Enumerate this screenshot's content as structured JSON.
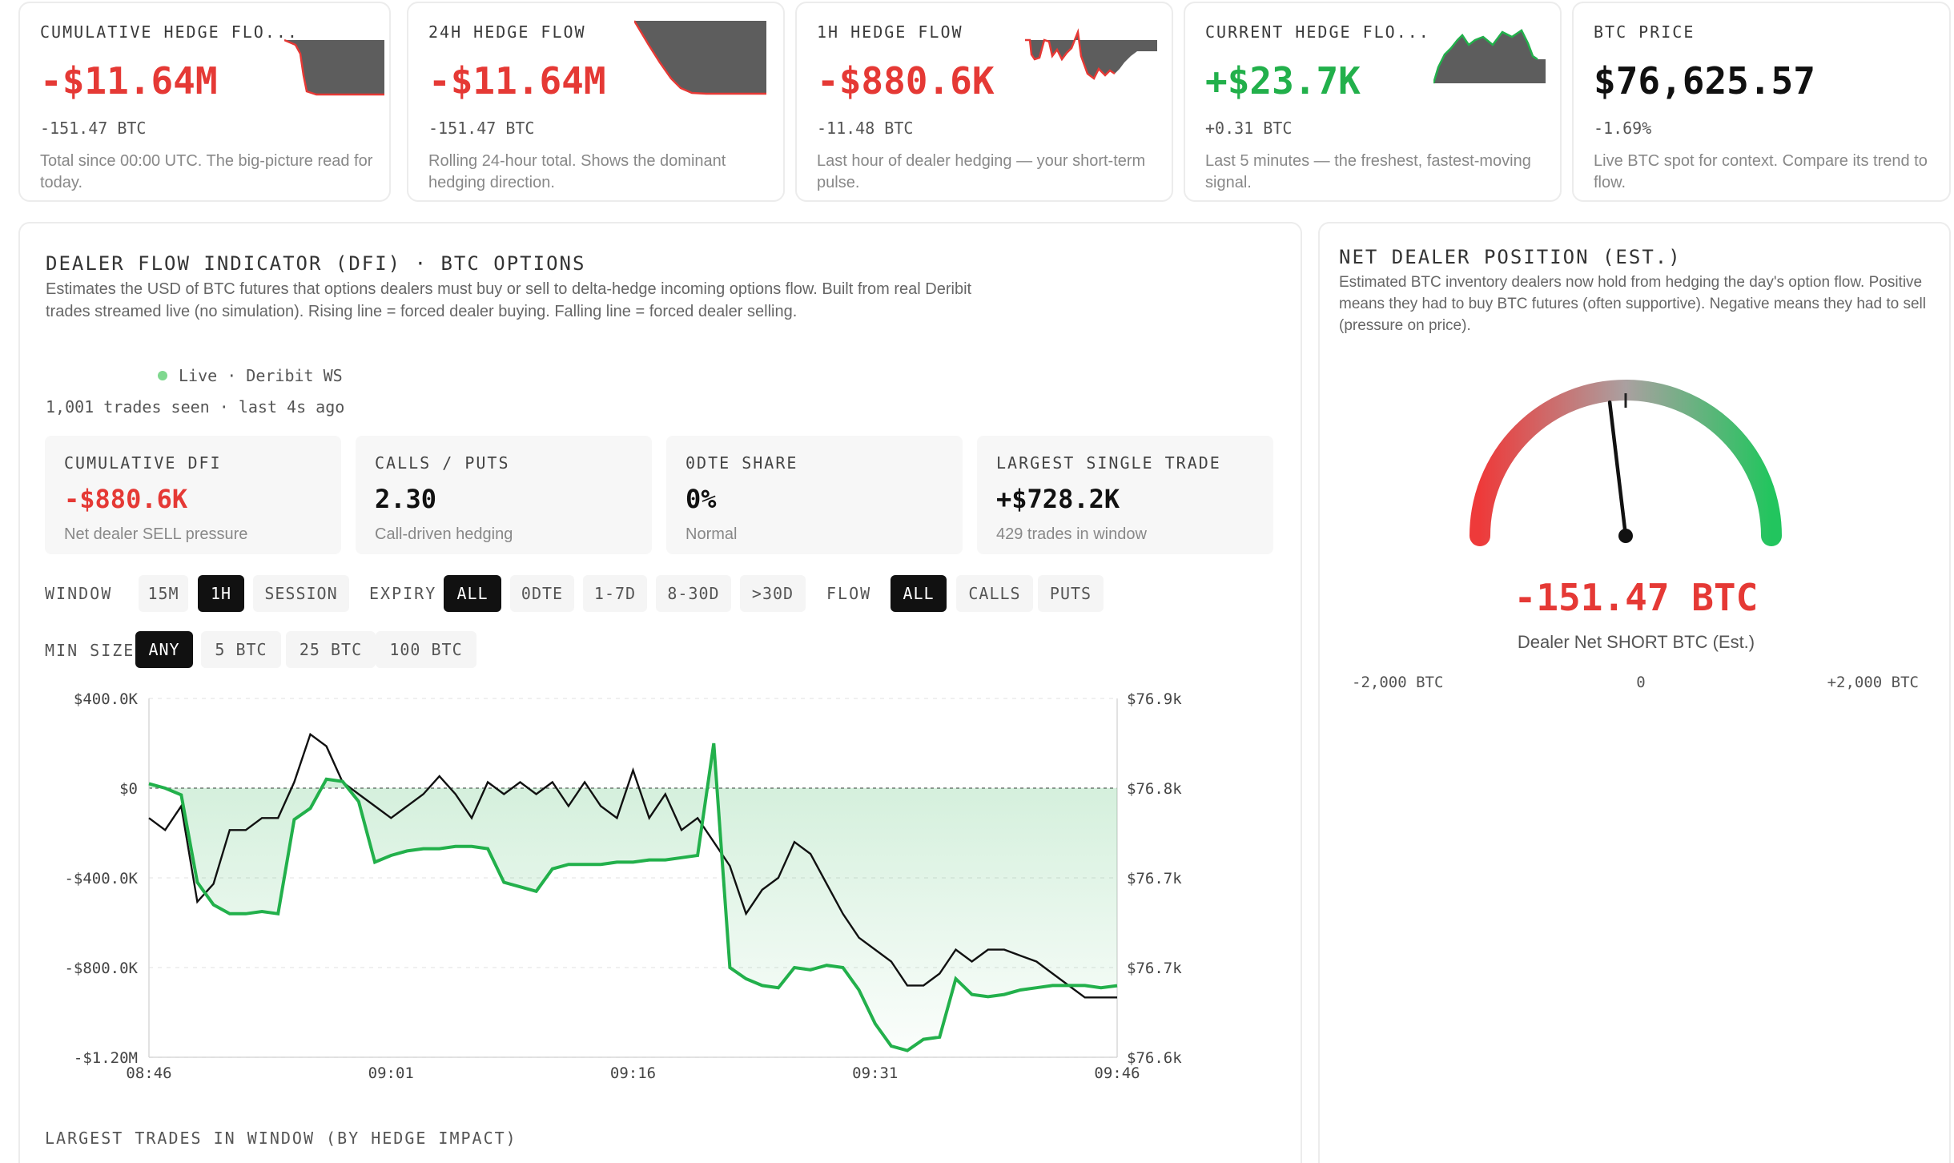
{
  "kpis": [
    {
      "label": "CUMULATIVE HEDGE FLO...",
      "value": "-$11.64M",
      "sub": "-151.47 BTC",
      "desc": "Total since 00:00 UTC. The big-picture read for today."
    },
    {
      "label": "24H HEDGE FLOW",
      "value": "-$11.64M",
      "sub": "-151.47 BTC",
      "desc": "Rolling 24-hour total. Shows the dominant hedging direction."
    },
    {
      "label": "1H HEDGE FLOW",
      "value": "-$880.6K",
      "sub": "-11.48 BTC",
      "desc": "Last hour of dealer hedging — your short-term pulse."
    },
    {
      "label": "CURRENT HEDGE FLO...",
      "value": "+$23.7K",
      "sub": "+0.31 BTC",
      "desc": "Last 5 minutes — the freshest, fastest-moving signal."
    },
    {
      "label": "BTC PRICE",
      "value": "$76,625.57",
      "sub": "-1.69%",
      "desc": "Live BTC spot for context. Compare its trend to flow."
    }
  ],
  "dfi": {
    "title": "DEALER FLOW INDICATOR (DFI) · BTC OPTIONS",
    "desc": "Estimates the USD of BTC futures that options dealers must buy or sell to delta-hedge incoming options flow. Built from real Deribit trades streamed live (no simulation). Rising line = forced dealer buying. Falling line = forced dealer selling.",
    "live": "Live · Deribit WS",
    "trades_seen": "1,001 trades seen · last 4s ago",
    "stats": [
      {
        "label": "CUMULATIVE DFI",
        "value": "-$880.6K",
        "sub": "Net dealer SELL pressure"
      },
      {
        "label": "CALLS / PUTS",
        "value": "2.30",
        "sub": "Call-driven hedging"
      },
      {
        "label": "0DTE SHARE",
        "value": "0%",
        "sub": "Normal"
      },
      {
        "label": "LARGEST SINGLE TRADE",
        "value": "+$728.2K",
        "sub": "429 trades in window"
      }
    ],
    "controls": {
      "window_label": "WINDOW",
      "window": [
        "15M",
        "1H",
        "SESSION"
      ],
      "expiry_label": "EXPIRY",
      "expiry": [
        "ALL",
        "0DTE",
        "1-7D",
        "8-30D",
        ">30D"
      ],
      "flow_label": "FLOW",
      "flow": [
        "ALL",
        "CALLS",
        "PUTS"
      ],
      "minsize_label": "MIN SIZE",
      "minsize": [
        "ANY",
        "5 BTC",
        "25 BTC",
        "100 BTC"
      ]
    },
    "largest_trades_title": "LARGEST TRADES IN WINDOW (BY HEDGE IMPACT)"
  },
  "chart_data": {
    "type": "line",
    "x_ticks": [
      "08:46",
      "09:01",
      "09:16",
      "09:31",
      "09:46"
    ],
    "y_left_ticks": [
      "$400.0K",
      "$0",
      "-$400.0K",
      "-$800.0K",
      "-$1.20M"
    ],
    "y_right_ticks": [
      "$76.9k",
      "$76.8k",
      "$76.7k",
      "$76.7k",
      "$76.6k"
    ],
    "y_left_range": [
      -1200000,
      400000
    ],
    "y_right_range": [
      76600,
      76900
    ],
    "series": [
      {
        "color": "#22b04b",
        "x": [
          0,
          1,
          2,
          3,
          4,
          5,
          6,
          7,
          8,
          9,
          10,
          11,
          12,
          13,
          14,
          15,
          16,
          17,
          18,
          19,
          20,
          21,
          22,
          23,
          24,
          25,
          26,
          27,
          28,
          29,
          30,
          31,
          32,
          33,
          34,
          35,
          36,
          37,
          38,
          39,
          40,
          41,
          42,
          43,
          44,
          45,
          46,
          47,
          48,
          49,
          50,
          51,
          52,
          53,
          54,
          55,
          56,
          57,
          58,
          59,
          60
        ],
        "y": [
          20000,
          0,
          -30000,
          -420000,
          -520000,
          -560000,
          -560000,
          -550000,
          -560000,
          -140000,
          -90000,
          40000,
          30000,
          -60000,
          -330000,
          -300000,
          -280000,
          -270000,
          -270000,
          -260000,
          -260000,
          -270000,
          -420000,
          -440000,
          -460000,
          -360000,
          -340000,
          -340000,
          -340000,
          -330000,
          -330000,
          -320000,
          -320000,
          -310000,
          -300000,
          200000,
          -800000,
          -850000,
          -880000,
          -890000,
          -800000,
          -810000,
          -790000,
          -800000,
          -900000,
          -1050000,
          -1150000,
          -1170000,
          -1120000,
          -1110000,
          -850000,
          -920000,
          -930000,
          -920000,
          -900000,
          -890000,
          -880000,
          -880000,
          -880000,
          -890000,
          -880600
        ]
      },
      {
        "color": "#111111",
        "x": [
          0,
          1,
          2,
          3,
          4,
          5,
          6,
          7,
          8,
          9,
          10,
          11,
          12,
          13,
          14,
          15,
          16,
          17,
          18,
          19,
          20,
          21,
          22,
          23,
          24,
          25,
          26,
          27,
          28,
          29,
          30,
          31,
          32,
          33,
          34,
          35,
          36,
          37,
          38,
          39,
          40,
          41,
          42,
          43,
          44,
          45,
          46,
          47,
          48,
          49,
          50,
          51,
          52,
          53,
          54,
          55,
          56,
          57,
          58,
          59,
          60
        ],
        "y": [
          76800,
          76790,
          76810,
          76730,
          76745,
          76790,
          76790,
          76800,
          76800,
          76830,
          76870,
          76860,
          76830,
          76820,
          76810,
          76800,
          76810,
          76820,
          76835,
          76820,
          76800,
          76830,
          76820,
          76830,
          76820,
          76830,
          76810,
          76830,
          76810,
          76800,
          76840,
          76800,
          76820,
          76790,
          76800,
          76780,
          76760,
          76720,
          76740,
          76750,
          76780,
          76770,
          76745,
          76720,
          76700,
          76690,
          76680,
          76660,
          76660,
          76670,
          76690,
          76680,
          76690,
          76690,
          76685,
          76680,
          76670,
          76660,
          76650,
          76650,
          76650
        ]
      }
    ]
  },
  "position": {
    "title": "NET DEALER POSITION (EST.)",
    "desc": "Estimated BTC inventory dealers now hold from hedging the day's option flow. Positive means they had to buy BTC futures (often supportive). Negative means they had to sell (pressure on price).",
    "value": "-151.47 BTC",
    "gauge_value": -151.47,
    "gauge_min": -2000,
    "gauge_max": 2000,
    "caption": "Dealer Net SHORT BTC (Est.)",
    "min_label": "-2,000 BTC",
    "mid_label": "0",
    "max_label": "+2,000 BTC"
  }
}
